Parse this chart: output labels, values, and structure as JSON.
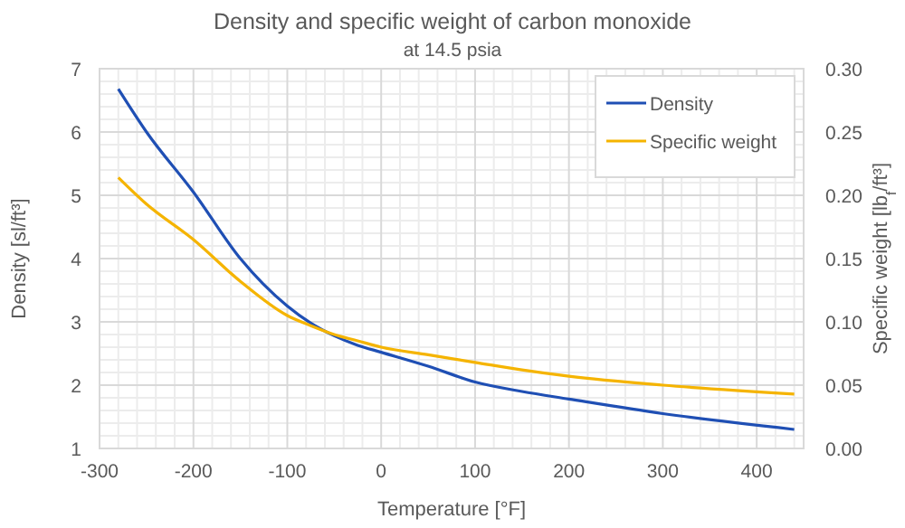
{
  "chart_data": {
    "type": "line",
    "title": "Density and specific weight of carbon monoxide",
    "subtitle": "at 14.5 psia",
    "xlabel": "Temperature [°F]",
    "ylabel": "Density [sl/ft³]",
    "y2label": "Specific weight [lb$_{f}$/ft³]",
    "xlim": [
      -300,
      450
    ],
    "xticks": [
      -300,
      -200,
      -100,
      0,
      100,
      200,
      300,
      400
    ],
    "ylim": [
      1,
      7
    ],
    "yticks": [
      1,
      2,
      3,
      4,
      5,
      6,
      7
    ],
    "y2lim": [
      0,
      0.3
    ],
    "y2ticks": [
      {
        "value": 0,
        "label": "0.00"
      },
      {
        "value": 0.05,
        "label": "0.05"
      },
      {
        "value": 0.1,
        "label": "0.10"
      },
      {
        "value": 0.15,
        "label": "0.15"
      },
      {
        "value": 0.2,
        "label": "0.20"
      },
      {
        "value": 0.25,
        "label": "0.25"
      },
      {
        "value": 0.3,
        "label": "0.30"
      }
    ],
    "grid": true,
    "legend": "top right",
    "line_style": "solid",
    "series": [
      {
        "name": "Density",
        "color": "#1f4fb4",
        "x": [
          -280,
          -250,
          -200,
          -150,
          -100,
          -75,
          -50,
          -25,
          0,
          50,
          100,
          150,
          200,
          300,
          440
        ],
        "values": [
          6.68,
          6.0,
          5.05,
          4.0,
          3.25,
          2.98,
          2.78,
          2.63,
          2.52,
          2.3,
          2.05,
          1.9,
          1.78,
          1.55,
          1.3
        ]
      },
      {
        "name": "Specific weight",
        "color": "#f5b400",
        "axis": "y2",
        "x": [
          -280,
          -250,
          -200,
          -150,
          -100,
          -75,
          -50,
          -25,
          0,
          50,
          100,
          150,
          200,
          300,
          440
        ],
        "values": [
          0.214,
          0.193,
          0.165,
          0.132,
          0.105,
          0.097,
          0.09,
          0.085,
          0.08,
          0.074,
          0.068,
          0.062,
          0.057,
          0.05,
          0.043
        ]
      }
    ]
  }
}
